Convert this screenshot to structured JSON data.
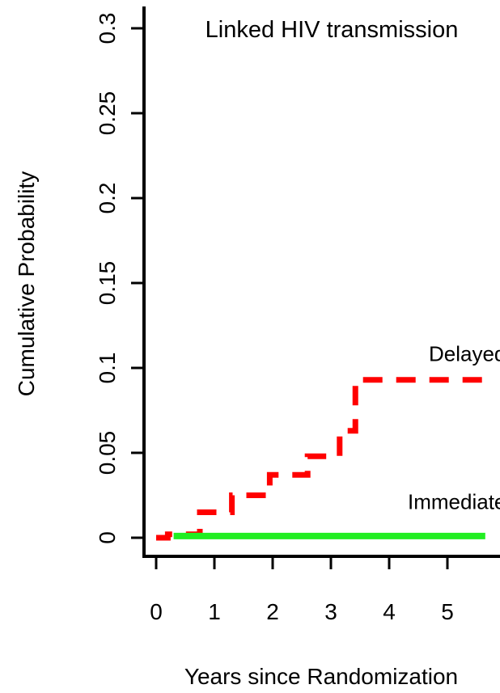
{
  "chart_data": {
    "type": "line",
    "title": "Linked HIV transmission",
    "xlabel": "Years since Randomization",
    "ylabel": "Cumulative Probability",
    "xlim": [
      -0.2,
      5.8
    ],
    "ylim": [
      -0.01,
      0.3
    ],
    "x_ticks": [
      {
        "value": 0,
        "label": "0"
      },
      {
        "value": 1,
        "label": "1"
      },
      {
        "value": 2,
        "label": "2"
      },
      {
        "value": 3,
        "label": "3"
      },
      {
        "value": 4,
        "label": "4"
      },
      {
        "value": 5,
        "label": "5"
      }
    ],
    "y_ticks": [
      {
        "value": 0,
        "label": "0"
      },
      {
        "value": 0.05,
        "label": "0.05"
      },
      {
        "value": 0.1,
        "label": "0.1"
      },
      {
        "value": 0.15,
        "label": "0.15"
      },
      {
        "value": 0.2,
        "label": "0.2"
      },
      {
        "value": 0.25,
        "label": "0.25"
      },
      {
        "value": 0.3,
        "label": "0.3"
      }
    ],
    "grid": false,
    "series": [
      {
        "name": "Delayed",
        "color": "#ff0000",
        "style": "dashed-step",
        "x": [
          0,
          0.2,
          0.75,
          1.3,
          1.95,
          2.6,
          3.15,
          3.42,
          5.65
        ],
        "values": [
          0,
          0.002,
          0.015,
          0.025,
          0.037,
          0.048,
          0.063,
          0.093,
          0.093
        ]
      },
      {
        "name": "Immediate",
        "color": "#22ee22",
        "style": "solid",
        "x": [
          0.3,
          5.65
        ],
        "values": [
          0.001,
          0.001
        ]
      }
    ],
    "annotations": [
      {
        "text": "Delayed",
        "x": 5.45,
        "y": 0.104
      },
      {
        "text": "Immediate",
        "x": 5.45,
        "y": 0.017
      }
    ]
  }
}
